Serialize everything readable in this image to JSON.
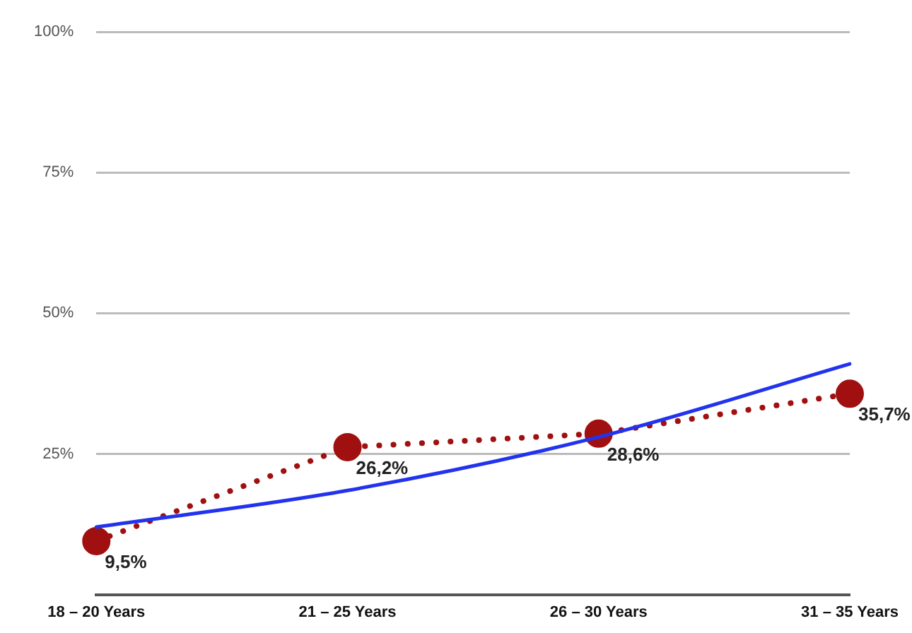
{
  "chart_data": {
    "type": "line",
    "categories": [
      "18 – 20 Years",
      "21 – 25 Years",
      "26 – 30 Years",
      "31 – 35 Years"
    ],
    "series": [
      {
        "color": "#a01010",
        "values": [
          9.5,
          26.2,
          28.6,
          35.7
        ],
        "value_labels": [
          "9,5%",
          "26,2%",
          "28,6%",
          "35,7%"
        ],
        "marker": "circle",
        "line_style": "dotted"
      },
      {
        "type": "line",
        "x": [
          "18 – 20 Years",
          "21 – 25 Years",
          "26 – 30 Years",
          "31 – 35 Years"
        ],
        "color": "#2233ee",
        "values": [
          12,
          18.5,
          28,
          41
        ],
        "marker": "none",
        "line_style": "solid"
      }
    ],
    "ylim": [
      0,
      100
    ],
    "yticks": [
      {
        "value": 0,
        "label": null
      },
      {
        "value": 25,
        "label": "25%"
      },
      {
        "value": 50,
        "label": "50%"
      },
      {
        "value": 75,
        "label": "75%"
      },
      {
        "value": 100,
        "label": "100%"
      }
    ],
    "grid": "y",
    "legend": false
  }
}
